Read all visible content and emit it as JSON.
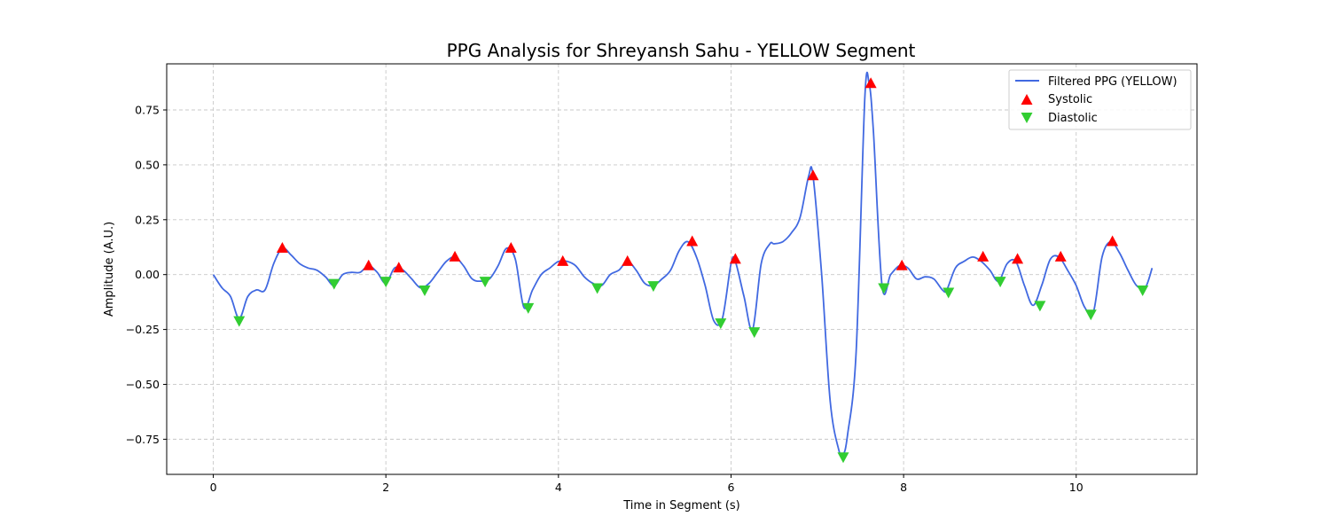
{
  "chart_data": {
    "type": "line",
    "title": "PPG Analysis for Shreyansh Sahu - YELLOW Segment",
    "xlabel": "Time in Segment (s)",
    "ylabel": "Amplitude (A.U.)",
    "xlim": [
      -0.54,
      11.4
    ],
    "ylim": [
      -0.91,
      0.96
    ],
    "x_ticks": [
      0,
      2,
      4,
      6,
      8,
      10
    ],
    "y_ticks": [
      -0.75,
      -0.5,
      -0.25,
      0.0,
      0.25,
      0.5,
      0.75
    ],
    "y_tick_labels": [
      "−0.75",
      "−0.50",
      "−0.25",
      "0.00",
      "0.25",
      "0.50",
      "0.75"
    ],
    "grid": true,
    "legend_position": "top-right",
    "colors": {
      "line": "#4169e1",
      "systolic": "#ff0000",
      "diastolic": "#32cd32"
    },
    "series": [
      {
        "name": "Filtered PPG (YELLOW)",
        "kind": "line",
        "x": [
          0.0,
          0.1,
          0.2,
          0.3,
          0.4,
          0.5,
          0.6,
          0.7,
          0.8,
          0.9,
          1.0,
          1.1,
          1.2,
          1.3,
          1.4,
          1.5,
          1.6,
          1.7,
          1.8,
          1.9,
          2.0,
          2.1,
          2.2,
          2.3,
          2.4,
          2.5,
          2.6,
          2.7,
          2.8,
          2.9,
          3.0,
          3.1,
          3.2,
          3.3,
          3.4,
          3.5,
          3.6,
          3.7,
          3.8,
          3.9,
          4.0,
          4.1,
          4.2,
          4.3,
          4.4,
          4.5,
          4.6,
          4.7,
          4.8,
          4.9,
          5.0,
          5.1,
          5.2,
          5.3,
          5.4,
          5.5,
          5.6,
          5.7,
          5.8,
          5.9,
          6.0,
          6.05,
          6.15,
          6.25,
          6.35,
          6.45,
          6.5,
          6.6,
          6.7,
          6.8,
          6.9,
          6.95,
          7.05,
          7.15,
          7.25,
          7.3,
          7.35,
          7.45,
          7.55,
          7.6,
          7.65,
          7.75,
          7.85,
          7.95,
          8.05,
          8.15,
          8.25,
          8.35,
          8.45,
          8.5,
          8.6,
          8.7,
          8.8,
          8.9,
          9.0,
          9.1,
          9.2,
          9.3,
          9.4,
          9.5,
          9.6,
          9.7,
          9.8,
          9.9,
          10.0,
          10.1,
          10.2,
          10.3,
          10.4,
          10.5,
          10.6,
          10.7,
          10.8,
          10.88
        ],
        "y": [
          0.0,
          -0.06,
          -0.1,
          -0.2,
          -0.1,
          -0.07,
          -0.07,
          0.05,
          0.12,
          0.09,
          0.05,
          0.03,
          0.02,
          -0.01,
          -0.05,
          0.0,
          0.01,
          0.01,
          0.04,
          0.01,
          -0.04,
          0.03,
          0.02,
          -0.02,
          -0.06,
          -0.04,
          0.01,
          0.06,
          0.08,
          0.04,
          -0.02,
          -0.03,
          -0.02,
          0.04,
          0.12,
          0.07,
          -0.15,
          -0.07,
          0.0,
          0.03,
          0.06,
          0.06,
          0.04,
          -0.01,
          -0.04,
          -0.05,
          0.0,
          0.02,
          0.06,
          0.02,
          -0.04,
          -0.05,
          -0.02,
          0.02,
          0.11,
          0.15,
          0.08,
          -0.05,
          -0.21,
          -0.2,
          0.05,
          0.06,
          -0.1,
          -0.25,
          0.05,
          0.14,
          0.14,
          0.15,
          0.19,
          0.26,
          0.45,
          0.45,
          0.0,
          -0.58,
          -0.8,
          -0.82,
          -0.73,
          -0.35,
          0.8,
          0.87,
          0.65,
          -0.05,
          0.0,
          0.04,
          0.03,
          -0.02,
          -0.01,
          -0.02,
          -0.07,
          -0.07,
          0.03,
          0.06,
          0.08,
          0.06,
          0.02,
          -0.03,
          0.05,
          0.06,
          -0.05,
          -0.14,
          -0.05,
          0.07,
          0.08,
          0.02,
          -0.05,
          -0.15,
          -0.17,
          0.08,
          0.15,
          0.1,
          0.02,
          -0.05,
          -0.06,
          0.03
        ]
      },
      {
        "name": "Systolic",
        "kind": "markers",
        "x": [
          0.8,
          1.8,
          2.15,
          2.8,
          3.45,
          4.05,
          4.8,
          5.55,
          6.05,
          6.95,
          7.62,
          7.98,
          8.92,
          9.32,
          9.82,
          10.42
        ],
        "y": [
          0.12,
          0.04,
          0.03,
          0.08,
          0.12,
          0.06,
          0.06,
          0.15,
          0.07,
          0.45,
          0.87,
          0.04,
          0.08,
          0.07,
          0.08,
          0.15
        ]
      },
      {
        "name": "Diastolic",
        "kind": "markers",
        "x": [
          0.3,
          1.4,
          2.0,
          2.45,
          3.15,
          3.65,
          4.45,
          5.1,
          5.88,
          6.27,
          7.3,
          7.77,
          8.52,
          9.12,
          9.58,
          10.17,
          10.77
        ],
        "y": [
          -0.21,
          -0.04,
          -0.03,
          -0.07,
          -0.03,
          -0.15,
          -0.06,
          -0.05,
          -0.22,
          -0.26,
          -0.83,
          -0.06,
          -0.08,
          -0.03,
          -0.14,
          -0.18,
          -0.07
        ]
      }
    ]
  }
}
